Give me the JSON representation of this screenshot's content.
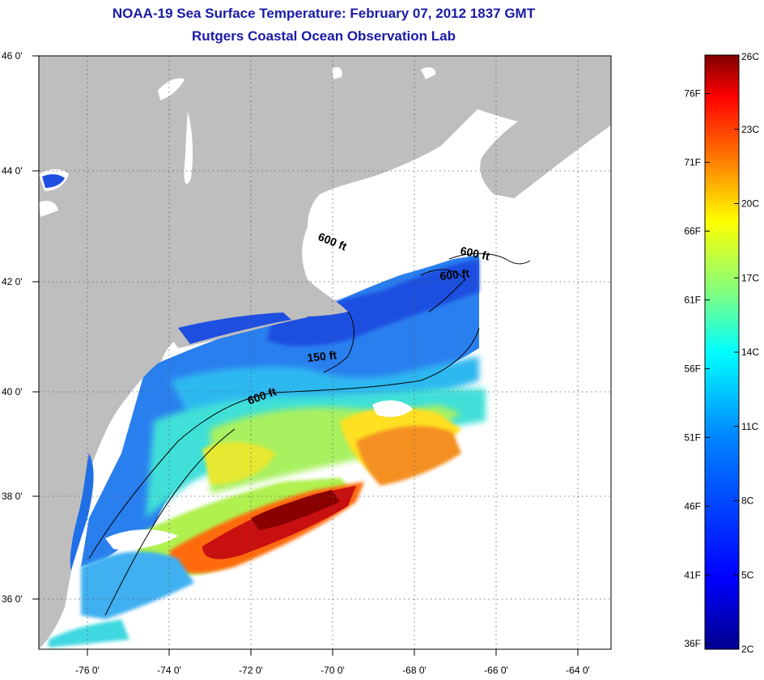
{
  "title": {
    "line1": "NOAA-19 Sea Surface Temperature:  February 07, 2012 1837 GMT",
    "line2": "Rutgers Coastal Ocean Observation Lab"
  },
  "map": {
    "lon_range": [
      -77,
      -63
    ],
    "lat_range": [
      35,
      46
    ],
    "x_tick_labels": [
      "-76 0'",
      "-74 0'",
      "-72 0'",
      "-70 0'",
      "-68 0'",
      "-66 0'",
      "-64 0'"
    ],
    "x_tick_values": [
      -76,
      -74,
      -72,
      -70,
      -68,
      -66,
      -64
    ],
    "y_tick_labels": [
      "46 0'",
      "44 0'",
      "42 0'",
      "40 0'",
      "38 0'",
      "36 0'"
    ],
    "y_tick_values": [
      46,
      44,
      42,
      40,
      38,
      36
    ],
    "grid": "dotted",
    "contour_labels": [
      "600 ft",
      "600 ft",
      "600 ft",
      "150 ft",
      "600 ft"
    ]
  },
  "colorbar": {
    "celsius_labels": [
      "26C",
      "23C",
      "20C",
      "17C",
      "14C",
      "11C",
      "8C",
      "5C",
      "2C"
    ],
    "celsius_values": [
      26,
      23,
      20,
      17,
      14,
      11,
      8,
      5,
      2
    ],
    "fahrenheit_labels": [
      "76F",
      "71F",
      "66F",
      "61F",
      "56F",
      "51F",
      "46F",
      "41F",
      "36F"
    ],
    "fahrenheit_values": [
      76,
      71,
      66,
      61,
      56,
      51,
      46,
      41,
      36
    ],
    "range_c": [
      2,
      26
    ],
    "colormap": [
      "#00008f",
      "#0000ff",
      "#0080ff",
      "#00ffff",
      "#80ff80",
      "#ffff00",
      "#ff8000",
      "#ff0000",
      "#800000"
    ]
  },
  "colors": {
    "land": "#bebebe",
    "no_data": "#ffffff",
    "title": "#1a1aa8"
  }
}
